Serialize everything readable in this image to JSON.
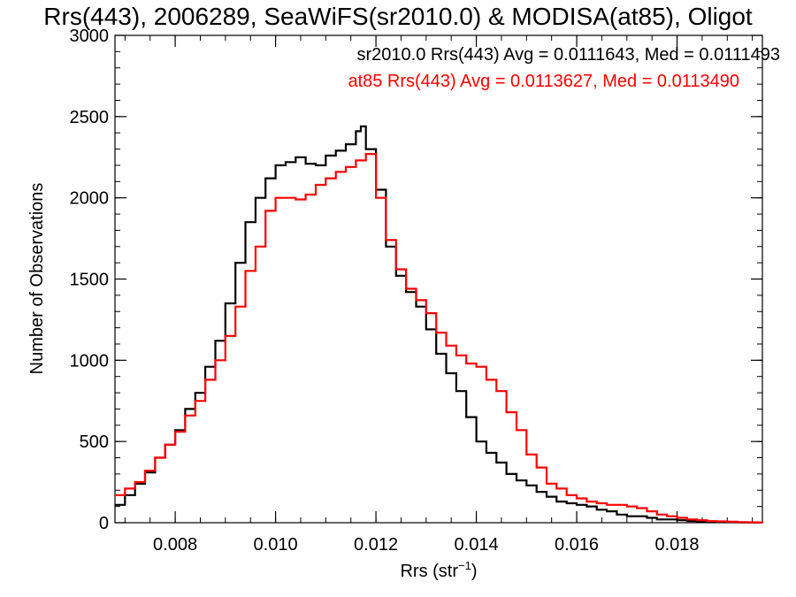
{
  "chart_data": {
    "type": "line",
    "step": true,
    "title": "Rrs(443), 2006289, SeaWiFS(sr2010.0) & MODISA(at85), Oligot",
    "xlabel_base": "Rrs (str",
    "xlabel_sup": "−1",
    "xlabel_close": ")",
    "ylabel": "Number of Observations",
    "xlim": [
      0.0068,
      0.0197
    ],
    "ylim": [
      0,
      3000
    ],
    "xticks": [
      0.008,
      0.01,
      0.012,
      0.014,
      0.016,
      0.018
    ],
    "xtick_labels": [
      "0.008",
      "0.010",
      "0.012",
      "0.014",
      "0.016",
      "0.018"
    ],
    "yticks": [
      0,
      500,
      1000,
      1500,
      2000,
      2500,
      3000
    ],
    "ytick_labels": [
      "0",
      "500",
      "1000",
      "1500",
      "2000",
      "2500",
      "3000"
    ],
    "x_minor_step": 0.0005,
    "y_minor_step": 100,
    "annotations": [
      "sr2010.0 Rrs(443) Avg = 0.0111643, Med = 0.0111493",
      "at85 Rrs(443) Avg = 0.0113627, Med = 0.0113490"
    ],
    "series": [
      {
        "color": "#000000",
        "x": [
          0.0068,
          0.007,
          0.0072,
          0.0074,
          0.0076,
          0.0078,
          0.008,
          0.0082,
          0.0084,
          0.0086,
          0.0088,
          0.009,
          0.0092,
          0.0094,
          0.0096,
          0.0098,
          0.01,
          0.0102,
          0.0104,
          0.0106,
          0.0108,
          0.011,
          0.0112,
          0.0114,
          0.0116,
          0.0117,
          0.0118,
          0.012,
          0.0122,
          0.0124,
          0.0126,
          0.0128,
          0.013,
          0.0132,
          0.0134,
          0.0136,
          0.0138,
          0.014,
          0.0142,
          0.0144,
          0.0146,
          0.0148,
          0.015,
          0.0152,
          0.0154,
          0.0156,
          0.0158,
          0.016,
          0.0162,
          0.0164,
          0.0166,
          0.0168,
          0.017,
          0.0172,
          0.0174,
          0.0176,
          0.0178,
          0.018,
          0.0182,
          0.0184,
          0.0186,
          0.0188,
          0.019,
          0.0192,
          0.0194,
          0.0197
        ],
        "y": [
          110,
          170,
          240,
          310,
          400,
          480,
          570,
          700,
          800,
          960,
          1120,
          1350,
          1600,
          1850,
          2000,
          2120,
          2200,
          2220,
          2250,
          2210,
          2200,
          2260,
          2290,
          2330,
          2410,
          2440,
          2300,
          2050,
          1700,
          1520,
          1420,
          1330,
          1190,
          1040,
          920,
          810,
          650,
          500,
          430,
          370,
          300,
          260,
          230,
          190,
          160,
          130,
          120,
          110,
          100,
          80,
          70,
          50,
          40,
          40,
          30,
          20,
          20,
          15,
          10,
          8,
          5,
          4,
          3,
          2,
          1,
          0
        ]
      },
      {
        "color": "#ff0000",
        "x": [
          0.0068,
          0.007,
          0.0072,
          0.0074,
          0.0076,
          0.0078,
          0.008,
          0.0082,
          0.0084,
          0.0086,
          0.0088,
          0.009,
          0.0092,
          0.0094,
          0.0096,
          0.0098,
          0.01,
          0.0102,
          0.0104,
          0.0106,
          0.0108,
          0.011,
          0.0112,
          0.0114,
          0.0116,
          0.0118,
          0.012,
          0.0122,
          0.0124,
          0.0126,
          0.0128,
          0.013,
          0.0132,
          0.0134,
          0.0136,
          0.0138,
          0.014,
          0.0142,
          0.0144,
          0.0146,
          0.0148,
          0.015,
          0.0152,
          0.0154,
          0.0156,
          0.0158,
          0.016,
          0.0162,
          0.0164,
          0.0166,
          0.0168,
          0.017,
          0.0172,
          0.0174,
          0.0176,
          0.0178,
          0.018,
          0.0182,
          0.0184,
          0.0186,
          0.0188,
          0.019,
          0.0192,
          0.0194,
          0.0197
        ],
        "y": [
          170,
          210,
          250,
          320,
          400,
          480,
          560,
          660,
          750,
          880,
          1000,
          1150,
          1330,
          1550,
          1700,
          1920,
          2000,
          2000,
          1990,
          2020,
          2080,
          2120,
          2160,
          2190,
          2230,
          2270,
          2000,
          1740,
          1560,
          1440,
          1370,
          1290,
          1170,
          1090,
          1030,
          980,
          960,
          880,
          810,
          680,
          570,
          420,
          340,
          240,
          210,
          170,
          150,
          130,
          120,
          110,
          110,
          100,
          90,
          70,
          50,
          40,
          30,
          20,
          15,
          10,
          8,
          6,
          4,
          2,
          0
        ]
      }
    ]
  }
}
